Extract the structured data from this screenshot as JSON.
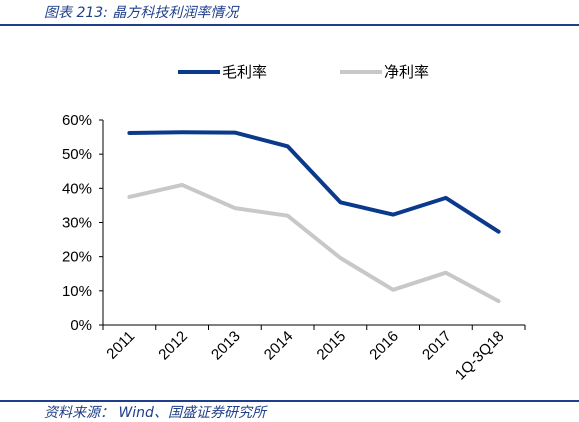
{
  "header": {
    "title": "图表 213:  晶方科技利润率情况"
  },
  "footer": {
    "source": "资料来源： Wind、国盛证券研究所"
  },
  "colors": {
    "accent": "#1f3f8a",
    "series_gross": "#0b3a8c",
    "series_net": "#c8c8c8"
  },
  "chart_data": {
    "type": "line",
    "title": "",
    "xlabel": "",
    "ylabel": "",
    "categories": [
      "2011",
      "2012",
      "2013",
      "2014",
      "2015",
      "2016",
      "2017",
      "1Q-3Q18"
    ],
    "series": [
      {
        "name": "毛利率",
        "values": [
          56.2,
          56.4,
          56.3,
          52.3,
          35.9,
          32.3,
          37.2,
          27.3
        ]
      },
      {
        "name": "净利率",
        "values": [
          37.5,
          41.0,
          34.2,
          32.0,
          19.6,
          10.3,
          15.3,
          7.0
        ]
      }
    ],
    "ylim": [
      0,
      60
    ],
    "yticks": [
      "0%",
      "10%",
      "20%",
      "30%",
      "40%",
      "50%",
      "60%"
    ],
    "grid": false,
    "legend": "top"
  }
}
